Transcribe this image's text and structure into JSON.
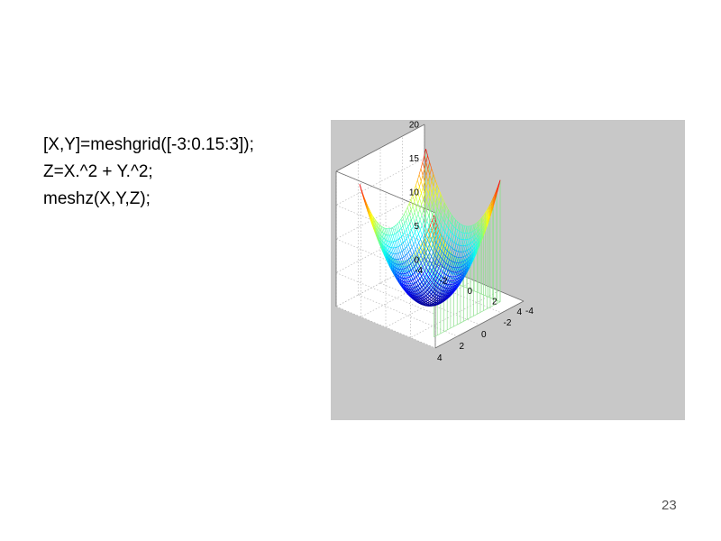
{
  "code_lines": [
    "[X,Y]=meshgrid([-3:0.15:3]);",
    "Z=X.^2 + Y.^2;",
    "meshz(X,Y,Z);"
  ],
  "page_number": "23",
  "chart_data": {
    "type": "mesh3d",
    "function": "Z = X^2 + Y^2",
    "grid": {
      "start": -3,
      "step": 0.15,
      "end": 3
    },
    "zlim": [
      0,
      20
    ],
    "z_ticks": [
      "0",
      "5",
      "10",
      "15",
      "20"
    ],
    "x_ticks": [
      "-4",
      "-2",
      "0",
      "2",
      "4"
    ],
    "y_ticks": [
      "-4",
      "-2",
      "0",
      "2",
      "4"
    ],
    "curtain": true,
    "colormap": "jet",
    "grid_on": true,
    "colors": {
      "panel_bg": "#c8c8c8",
      "axes_bg": "#ffffff",
      "curtain": "#8fe08f"
    }
  }
}
